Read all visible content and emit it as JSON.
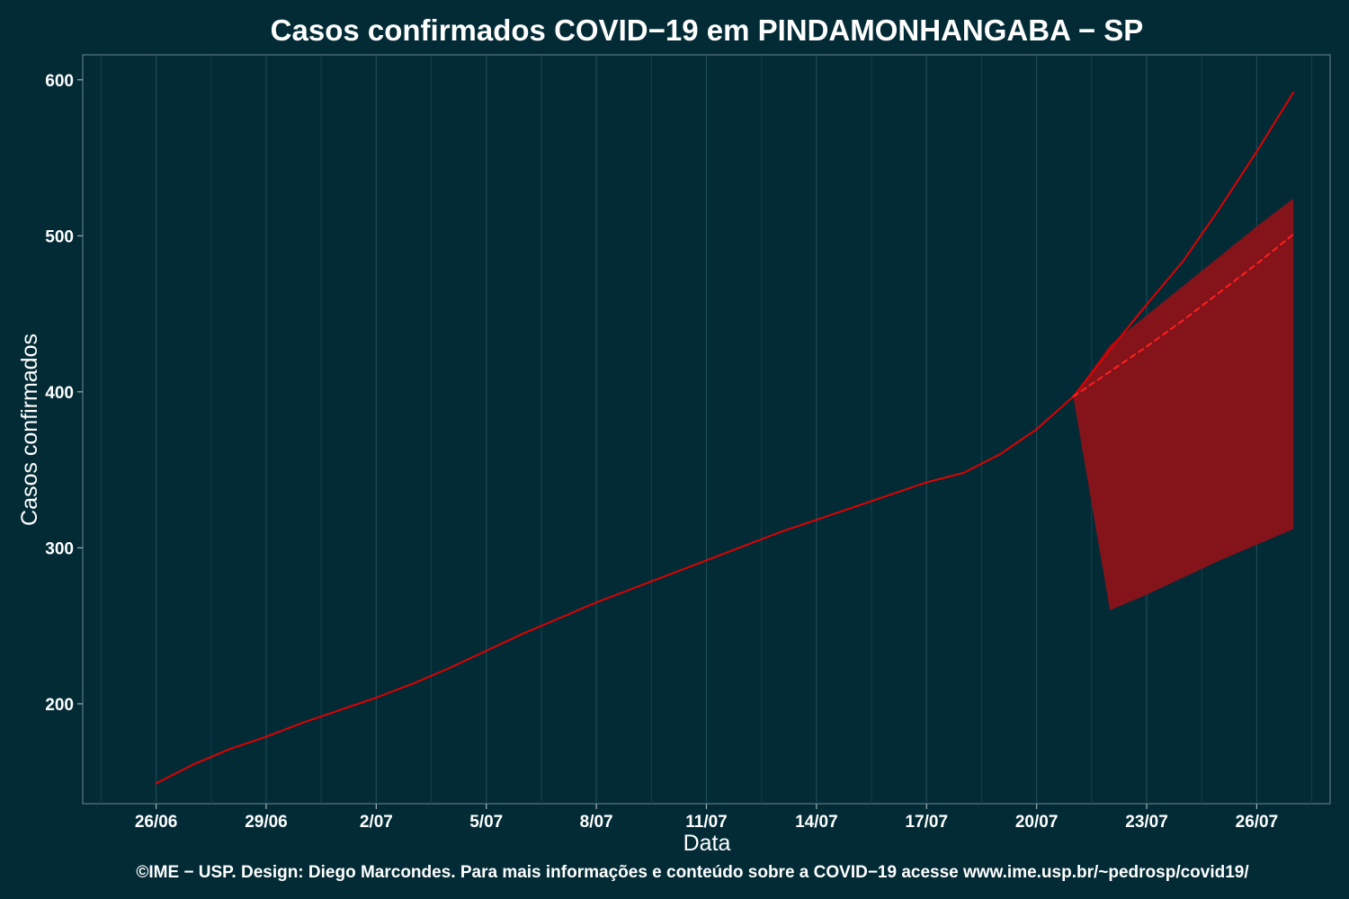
{
  "chart_data": {
    "type": "line",
    "title": "Casos confirmados COVID−19 em PINDAMONHANGABA − SP",
    "xlabel": "Data",
    "ylabel": "Casos confirmados",
    "caption": "©IME − USP. Design: Diego Marcondes. Para mais informações e conteúdo sobre a COVID−19 acesse www.ime.usp.br/~pedrosp/covid19/",
    "x_ticks": [
      "26/06",
      "29/06",
      "2/07",
      "5/07",
      "8/07",
      "11/07",
      "14/07",
      "17/07",
      "20/07",
      "23/07",
      "26/07"
    ],
    "y_ticks": [
      200,
      300,
      400,
      500,
      600
    ],
    "ylim": [
      136,
      616
    ],
    "x_range": [
      "2020-06-24",
      "2020-07-28"
    ],
    "grid": true,
    "legend": "none",
    "series": [
      {
        "style": "solid",
        "color": "#e00000",
        "dates": [
          "2020-06-26",
          "2020-06-27",
          "2020-06-28",
          "2020-06-29",
          "2020-06-30",
          "2020-07-01",
          "2020-07-02",
          "2020-07-03",
          "2020-07-04",
          "2020-07-05",
          "2020-07-06",
          "2020-07-07",
          "2020-07-08",
          "2020-07-09",
          "2020-07-10",
          "2020-07-11",
          "2020-07-12",
          "2020-07-13",
          "2020-07-14",
          "2020-07-15",
          "2020-07-16",
          "2020-07-17",
          "2020-07-18",
          "2020-07-19",
          "2020-07-20",
          "2020-07-21",
          "2020-07-22",
          "2020-07-23",
          "2020-07-24",
          "2020-07-25",
          "2020-07-26",
          "2020-07-27"
        ],
        "values": [
          149,
          161,
          171,
          179,
          188,
          196,
          204,
          213,
          223,
          234,
          245,
          255,
          265,
          274,
          283,
          292,
          301,
          310,
          318,
          326,
          334,
          342,
          348,
          360,
          376,
          397,
          427,
          456,
          484,
          518,
          554,
          592
        ]
      },
      {
        "style": "dashed",
        "color": "#ff2020",
        "dates": [
          "2020-07-21",
          "2020-07-22",
          "2020-07-23",
          "2020-07-24",
          "2020-07-25",
          "2020-07-26",
          "2020-07-27"
        ],
        "values": [
          397,
          413,
          429,
          446,
          464,
          482,
          501
        ]
      }
    ],
    "band": {
      "color": "#8b1219",
      "dates": [
        "2020-07-21",
        "2020-07-22",
        "2020-07-23",
        "2020-07-24",
        "2020-07-25",
        "2020-07-26",
        "2020-07-27"
      ],
      "lower": [
        397,
        260,
        270,
        281,
        292,
        302,
        312
      ],
      "upper": [
        397,
        430,
        449,
        468,
        487,
        506,
        524
      ]
    }
  }
}
